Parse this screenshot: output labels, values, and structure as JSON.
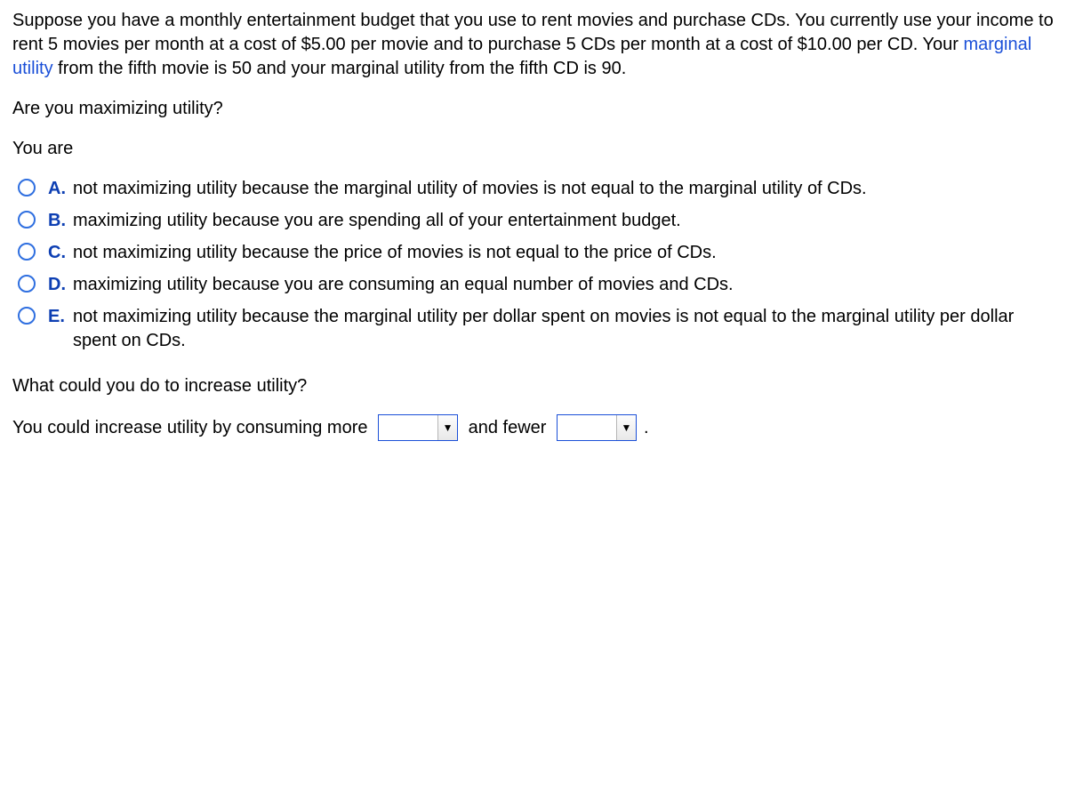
{
  "intro": {
    "part1": "Suppose you have a monthly entertainment budget that you use to rent movies and purchase CDs. You currently use your income to rent 5 movies per month at a cost of $5.00 per movie and to purchase 5 CDs per month at a cost of $10.00 per CD. Your ",
    "link": "marginal utility",
    "part2": " from the fifth movie is 50 and your marginal utility from the fifth CD is 90."
  },
  "q1": "Are you maximizing utility?",
  "lead1": "You are",
  "options": [
    {
      "letter": "A.",
      "text": "not maximizing utility because the marginal utility of movies is not equal to the marginal utility of CDs."
    },
    {
      "letter": "B.",
      "text": "maximizing utility because you are spending all of your entertainment budget."
    },
    {
      "letter": "C.",
      "text": "not maximizing utility because the price of movies is not equal to the price of CDs."
    },
    {
      "letter": "D.",
      "text": "maximizing utility because you are consuming an equal number of movies and CDs."
    },
    {
      "letter": "E.",
      "text": "not maximizing utility because the marginal utility per dollar spent on movies is not equal to the marginal utility per dollar spent on CDs."
    }
  ],
  "q2": "What could you do to increase utility?",
  "fill": {
    "pre": "You could increase utility by consuming more ",
    "mid": " and fewer ",
    "post": "."
  },
  "colors": {
    "radio_border": "#2f6fe0",
    "letter_color": "#0d3fb3",
    "link_color": "#1a4fd8",
    "dropdown_border": "#1a4fd8"
  }
}
